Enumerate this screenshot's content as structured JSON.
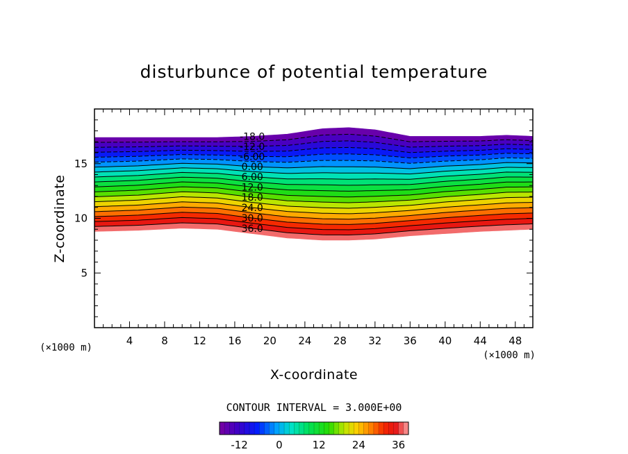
{
  "chart_data": {
    "type": "heatmap",
    "subtype": "filled-contour",
    "title": "disturbunce of potential temperature",
    "xlabel": "X-coordinate",
    "ylabel": "Z-coordinate",
    "x_unit_label": "(×1000 m)",
    "y_unit_label": "(×1000 m)",
    "xlim": [
      0,
      50
    ],
    "ylim": [
      0,
      20
    ],
    "x_ticks": [
      4,
      8,
      12,
      16,
      20,
      24,
      28,
      32,
      36,
      40,
      44,
      48
    ],
    "y_ticks": [
      5,
      10,
      15
    ],
    "contour_interval_text": "CONTOUR INTERVAL = 3.000E+00",
    "contour_interval": 3.0,
    "value_range": [
      -18,
      39
    ],
    "contour_labels": [
      {
        "text": "-18.0",
        "value": -18
      },
      {
        "text": "-12.0",
        "value": -12
      },
      {
        "text": "-6.00",
        "value": -6
      },
      {
        "text": "0.00",
        "value": 0
      },
      {
        "text": "6.00",
        "value": 6
      },
      {
        "text": "12.0",
        "value": 12
      },
      {
        "text": "18.0",
        "value": 18
      },
      {
        "text": "24.0",
        "value": 24
      },
      {
        "text": "30.0",
        "value": 30
      },
      {
        "text": "36.0",
        "value": 36
      }
    ],
    "field_profile": {
      "x": [
        0,
        5,
        10,
        14,
        18,
        22,
        26,
        29,
        32,
        36,
        40,
        44,
        47,
        50
      ],
      "top_z": [
        17.4,
        17.4,
        17.4,
        17.4,
        17.5,
        17.7,
        18.2,
        18.3,
        18.1,
        17.5,
        17.5,
        17.5,
        17.6,
        17.5
      ],
      "bottom_z": [
        8.8,
        8.9,
        9.1,
        9.0,
        8.6,
        8.2,
        8.0,
        8.0,
        8.1,
        8.4,
        8.6,
        8.8,
        8.9,
        9.0
      ],
      "dip": [
        0.0,
        0.1,
        0.3,
        0.25,
        0.05,
        -0.1,
        -0.3,
        -0.4,
        -0.3,
        -0.1,
        0.1,
        0.2,
        0.3,
        0.3
      ]
    },
    "colorbar": {
      "tick_labels": [
        "-12",
        "0",
        "12",
        "24",
        "36"
      ],
      "tick_values": [
        -12,
        0,
        12,
        24,
        36
      ],
      "range": [
        -18,
        39
      ]
    },
    "grid": false,
    "legend": "colorbar-bottom"
  }
}
